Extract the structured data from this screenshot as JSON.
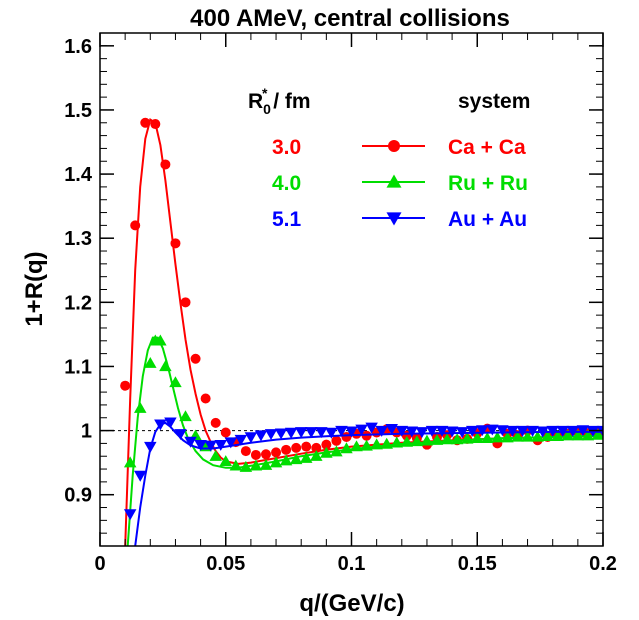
{
  "chart_data": {
    "type": "scatter",
    "title": "400 AMeV, central collisions",
    "xlabel": "q/(GeV/c)",
    "ylabel": "1+R(q)",
    "xlim": [
      0,
      0.2
    ],
    "ylim": [
      0.82,
      1.62
    ],
    "x_ticks": [
      0,
      0.05,
      0.1,
      0.15,
      0.2
    ],
    "x_tick_labels": [
      "0",
      "0.05",
      "0.1",
      "0.15",
      "0.2"
    ],
    "y_ticks": [
      0.9,
      1,
      1.1,
      1.2,
      1.3,
      1.4,
      1.5,
      1.6
    ],
    "y_tick_labels": [
      "0.9",
      "1",
      "1.1",
      "1.2",
      "1.3",
      "1.4",
      "1.5",
      "1.6"
    ],
    "reference_line": 1,
    "legend": {
      "placement": "top-right",
      "header_radius": "R",
      "header_radius_sup": "*",
      "header_radius_sub": "0",
      "header_radius_unit": " / fm",
      "header_system": "system"
    },
    "series": [
      {
        "name": "Ca + Ca",
        "radius": "3.0",
        "color": "#ff0000",
        "marker": "circle",
        "points": [
          [
            0.01,
            1.07
          ],
          [
            0.014,
            1.32
          ],
          [
            0.018,
            1.48
          ],
          [
            0.022,
            1.478
          ],
          [
            0.026,
            1.415
          ],
          [
            0.03,
            1.292
          ],
          [
            0.034,
            1.2
          ],
          [
            0.038,
            1.112
          ],
          [
            0.042,
            1.05
          ],
          [
            0.046,
            1.012
          ],
          [
            0.05,
            0.997
          ],
          [
            0.054,
            0.982
          ],
          [
            0.058,
            0.968
          ],
          [
            0.062,
            0.962
          ],
          [
            0.066,
            0.963
          ],
          [
            0.07,
            0.966
          ],
          [
            0.074,
            0.97
          ],
          [
            0.078,
            0.973
          ],
          [
            0.082,
            0.975
          ],
          [
            0.086,
            0.973
          ],
          [
            0.09,
            0.978
          ],
          [
            0.094,
            0.984
          ],
          [
            0.098,
            0.99
          ],
          [
            0.102,
            0.995
          ],
          [
            0.106,
            0.992
          ],
          [
            0.11,
            0.997
          ],
          [
            0.114,
            1.002
          ],
          [
            0.118,
            0.997
          ],
          [
            0.122,
            0.992
          ],
          [
            0.126,
            0.988
          ],
          [
            0.13,
            0.978
          ],
          [
            0.134,
            0.99
          ],
          [
            0.138,
            0.993
          ],
          [
            0.142,
            0.985
          ],
          [
            0.146,
            0.987
          ],
          [
            0.15,
            0.996
          ],
          [
            0.154,
            1.003
          ],
          [
            0.158,
            0.98
          ],
          [
            0.162,
            0.995
          ],
          [
            0.166,
            0.993
          ],
          [
            0.17,
            1.0
          ],
          [
            0.174,
            0.985
          ],
          [
            0.178,
            0.99
          ],
          [
            0.182,
            0.992
          ],
          [
            0.186,
            0.995
          ],
          [
            0.19,
            0.998
          ],
          [
            0.194,
            0.996
          ],
          [
            0.198,
            0.997
          ]
        ],
        "fit": [
          [
            0.01,
            0.82
          ],
          [
            0.012,
            1.05
          ],
          [
            0.014,
            1.25
          ],
          [
            0.016,
            1.38
          ],
          [
            0.018,
            1.455
          ],
          [
            0.02,
            1.485
          ],
          [
            0.022,
            1.48
          ],
          [
            0.024,
            1.445
          ],
          [
            0.026,
            1.39
          ],
          [
            0.028,
            1.325
          ],
          [
            0.03,
            1.26
          ],
          [
            0.032,
            1.198
          ],
          [
            0.034,
            1.142
          ],
          [
            0.036,
            1.095
          ],
          [
            0.038,
            1.057
          ],
          [
            0.04,
            1.025
          ],
          [
            0.042,
            1.0
          ],
          [
            0.044,
            0.982
          ],
          [
            0.046,
            0.968
          ],
          [
            0.048,
            0.958
          ],
          [
            0.05,
            0.952
          ],
          [
            0.055,
            0.948
          ],
          [
            0.06,
            0.95
          ],
          [
            0.07,
            0.957
          ],
          [
            0.08,
            0.964
          ],
          [
            0.09,
            0.97
          ],
          [
            0.1,
            0.975
          ],
          [
            0.12,
            0.981
          ],
          [
            0.14,
            0.985
          ],
          [
            0.16,
            0.988
          ],
          [
            0.18,
            0.99
          ],
          [
            0.2,
            0.992
          ]
        ]
      },
      {
        "name": "Ru + Ru",
        "radius": "4.0",
        "color": "#00dd00",
        "marker": "triangle-up",
        "points": [
          [
            0.012,
            0.95
          ],
          [
            0.016,
            1.035
          ],
          [
            0.02,
            1.105
          ],
          [
            0.022,
            1.14
          ],
          [
            0.024,
            1.14
          ],
          [
            0.026,
            1.1
          ],
          [
            0.03,
            1.075
          ],
          [
            0.034,
            1.022
          ],
          [
            0.038,
            0.992
          ],
          [
            0.042,
            0.975
          ],
          [
            0.046,
            0.96
          ],
          [
            0.05,
            0.952
          ],
          [
            0.054,
            0.945
          ],
          [
            0.058,
            0.943
          ],
          [
            0.062,
            0.945
          ],
          [
            0.066,
            0.946
          ],
          [
            0.07,
            0.95
          ],
          [
            0.074,
            0.953
          ],
          [
            0.078,
            0.955
          ],
          [
            0.082,
            0.957
          ],
          [
            0.086,
            0.96
          ],
          [
            0.09,
            0.965
          ],
          [
            0.094,
            0.967
          ],
          [
            0.098,
            0.972
          ],
          [
            0.102,
            0.975
          ],
          [
            0.106,
            0.976
          ],
          [
            0.11,
            0.978
          ],
          [
            0.114,
            0.979
          ],
          [
            0.118,
            0.981
          ],
          [
            0.122,
            0.982
          ],
          [
            0.126,
            0.983
          ],
          [
            0.13,
            0.984
          ],
          [
            0.134,
            0.985
          ],
          [
            0.138,
            0.986
          ],
          [
            0.142,
            0.986
          ],
          [
            0.146,
            0.987
          ],
          [
            0.15,
            0.988
          ],
          [
            0.154,
            0.988
          ],
          [
            0.158,
            0.989
          ],
          [
            0.162,
            0.989
          ],
          [
            0.166,
            0.99
          ],
          [
            0.17,
            0.99
          ],
          [
            0.174,
            0.99
          ],
          [
            0.178,
            0.991
          ],
          [
            0.182,
            0.991
          ],
          [
            0.186,
            0.992
          ],
          [
            0.19,
            0.992
          ],
          [
            0.194,
            0.992
          ],
          [
            0.198,
            0.993
          ]
        ],
        "fit": [
          [
            0.011,
            0.82
          ],
          [
            0.013,
            0.93
          ],
          [
            0.015,
            1.02
          ],
          [
            0.017,
            1.085
          ],
          [
            0.019,
            1.125
          ],
          [
            0.021,
            1.145
          ],
          [
            0.023,
            1.145
          ],
          [
            0.025,
            1.128
          ],
          [
            0.027,
            1.1
          ],
          [
            0.029,
            1.068
          ],
          [
            0.031,
            1.035
          ],
          [
            0.033,
            1.008
          ],
          [
            0.035,
            0.988
          ],
          [
            0.038,
            0.968
          ],
          [
            0.041,
            0.955
          ],
          [
            0.045,
            0.946
          ],
          [
            0.05,
            0.942
          ],
          [
            0.055,
            0.942
          ],
          [
            0.06,
            0.945
          ],
          [
            0.07,
            0.952
          ],
          [
            0.08,
            0.96
          ],
          [
            0.09,
            0.966
          ],
          [
            0.1,
            0.971
          ],
          [
            0.12,
            0.979
          ],
          [
            0.14,
            0.984
          ],
          [
            0.16,
            0.988
          ],
          [
            0.18,
            0.99
          ],
          [
            0.2,
            0.992
          ]
        ]
      },
      {
        "name": "Au + Au",
        "radius": "5.1",
        "color": "#0000ff",
        "marker": "triangle-down",
        "points": [
          [
            0.012,
            0.87
          ],
          [
            0.016,
            0.93
          ],
          [
            0.02,
            0.975
          ],
          [
            0.024,
            1.01
          ],
          [
            0.028,
            1.013
          ],
          [
            0.032,
            0.995
          ],
          [
            0.036,
            0.983
          ],
          [
            0.04,
            0.978
          ],
          [
            0.044,
            0.977
          ],
          [
            0.048,
            0.978
          ],
          [
            0.052,
            0.982
          ],
          [
            0.056,
            0.986
          ],
          [
            0.06,
            0.99
          ],
          [
            0.064,
            0.993
          ],
          [
            0.068,
            0.995
          ],
          [
            0.072,
            0.996
          ],
          [
            0.076,
            0.997
          ],
          [
            0.08,
            0.998
          ],
          [
            0.084,
            0.998
          ],
          [
            0.088,
            0.998
          ],
          [
            0.092,
            0.997
          ],
          [
            0.096,
            1.0
          ],
          [
            0.1,
            0.999
          ],
          [
            0.104,
            1.002
          ],
          [
            0.108,
            1.005
          ],
          [
            0.112,
            1.0
          ],
          [
            0.116,
            1.003
          ],
          [
            0.12,
            1.0
          ],
          [
            0.124,
            0.999
          ],
          [
            0.128,
            0.998
          ],
          [
            0.132,
            1.0
          ],
          [
            0.136,
            1.0
          ],
          [
            0.14,
            0.999
          ],
          [
            0.144,
            0.998
          ],
          [
            0.148,
            1.0
          ],
          [
            0.152,
            1.001
          ],
          [
            0.156,
            1.002
          ],
          [
            0.16,
            1.001
          ],
          [
            0.164,
            1.0
          ],
          [
            0.168,
            1.0
          ],
          [
            0.172,
            1.0
          ],
          [
            0.176,
            0.999
          ],
          [
            0.18,
            1.0
          ],
          [
            0.184,
            1.0
          ],
          [
            0.188,
            1.0
          ],
          [
            0.192,
            1.001
          ],
          [
            0.196,
            1.0
          ],
          [
            0.2,
            1.0
          ]
        ],
        "fit": [
          [
            0.014,
            0.82
          ],
          [
            0.016,
            0.88
          ],
          [
            0.018,
            0.93
          ],
          [
            0.02,
            0.972
          ],
          [
            0.022,
            0.998
          ],
          [
            0.024,
            1.01
          ],
          [
            0.026,
            1.012
          ],
          [
            0.028,
            1.006
          ],
          [
            0.03,
            0.997
          ],
          [
            0.033,
            0.985
          ],
          [
            0.036,
            0.977
          ],
          [
            0.04,
            0.972
          ],
          [
            0.045,
            0.972
          ],
          [
            0.05,
            0.975
          ],
          [
            0.06,
            0.981
          ],
          [
            0.07,
            0.986
          ],
          [
            0.08,
            0.989
          ],
          [
            0.09,
            0.991
          ],
          [
            0.1,
            0.993
          ],
          [
            0.12,
            0.995
          ],
          [
            0.14,
            0.996
          ],
          [
            0.16,
            0.997
          ],
          [
            0.18,
            0.998
          ],
          [
            0.2,
            0.998
          ]
        ]
      }
    ]
  }
}
